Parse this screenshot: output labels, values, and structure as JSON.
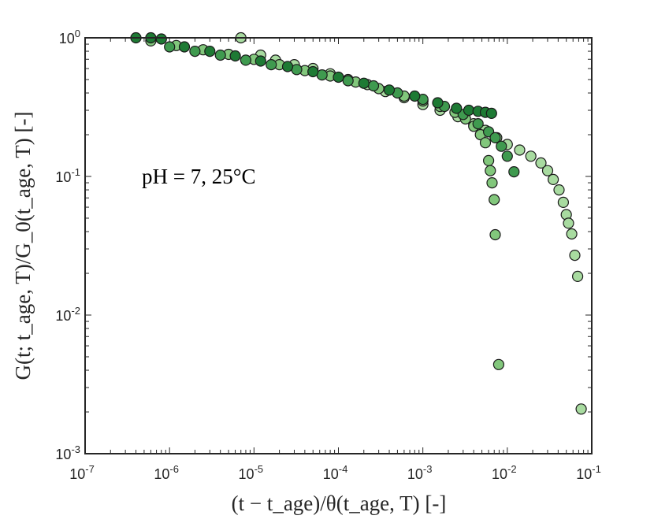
{
  "chart_data": {
    "type": "scatter",
    "xlabel": "(t − t_age)/θ(t_age, T) [-]",
    "ylabel": "G(t; t_age, T)/G_0(t_age, T) [-]",
    "x_scale": "log",
    "y_scale": "log",
    "xlim": [
      1e-07,
      0.1
    ],
    "ylim": [
      0.001,
      1
    ],
    "x_ticks": [
      "10-7",
      "10-6",
      "10-5",
      "10-4",
      "10-3",
      "10-2",
      "10-1"
    ],
    "y_ticks": [
      "10-3",
      "10-2",
      "10-1",
      "100"
    ],
    "annotation": "pH = 7, 25°C",
    "grid": false,
    "legend": "none",
    "series": [
      {
        "color": "#a8dba0",
        "points": [
          [
            7e-06,
            1.0
          ],
          [
            1.2e-05,
            0.75
          ],
          [
            1.8e-05,
            0.69
          ],
          [
            3e-05,
            0.64
          ],
          [
            5e-05,
            0.6
          ],
          [
            8e-05,
            0.55
          ],
          [
            0.00013,
            0.5
          ],
          [
            0.00022,
            0.46
          ],
          [
            0.00036,
            0.41
          ],
          [
            0.0006,
            0.37
          ],
          [
            0.001,
            0.33
          ],
          [
            0.0016,
            0.3
          ],
          [
            0.0026,
            0.27
          ],
          [
            0.004,
            0.24
          ],
          [
            0.0055,
            0.215
          ],
          [
            0.0075,
            0.19
          ],
          [
            0.01,
            0.17
          ],
          [
            0.014,
            0.155
          ],
          [
            0.019,
            0.14
          ],
          [
            0.025,
            0.125
          ],
          [
            0.03,
            0.11
          ],
          [
            0.035,
            0.095
          ],
          [
            0.041,
            0.08
          ],
          [
            0.046,
            0.065
          ],
          [
            0.05,
            0.053
          ],
          [
            0.053,
            0.046
          ],
          [
            0.058,
            0.0385
          ],
          [
            0.063,
            0.027
          ],
          [
            0.068,
            0.019
          ],
          [
            0.075,
            0.0021
          ]
        ]
      },
      {
        "color": "#82c77c",
        "points": [
          [
            6e-07,
            0.95
          ],
          [
            1.2e-06,
            0.88
          ],
          [
            2.5e-06,
            0.82
          ],
          [
            5e-06,
            0.76
          ],
          [
            1e-05,
            0.7
          ],
          [
            2e-05,
            0.64
          ],
          [
            4e-05,
            0.58
          ],
          [
            8e-05,
            0.53
          ],
          [
            0.00016,
            0.48
          ],
          [
            0.0003,
            0.43
          ],
          [
            0.0006,
            0.38
          ],
          [
            0.001,
            0.35
          ],
          [
            0.0016,
            0.32
          ],
          [
            0.0024,
            0.29
          ],
          [
            0.0032,
            0.26
          ],
          [
            0.004,
            0.23
          ],
          [
            0.0048,
            0.2
          ],
          [
            0.0055,
            0.175
          ],
          [
            0.006,
            0.13
          ],
          [
            0.0063,
            0.11
          ],
          [
            0.0066,
            0.09
          ],
          [
            0.007,
            0.068
          ],
          [
            0.0072,
            0.038
          ],
          [
            0.0079,
            0.0044
          ]
        ]
      },
      {
        "color": "#3f9a4f",
        "points": [
          [
            1e-06,
            0.86
          ],
          [
            2e-06,
            0.8
          ],
          [
            4e-06,
            0.75
          ],
          [
            8e-06,
            0.69
          ],
          [
            1.6e-05,
            0.64
          ],
          [
            3.2e-05,
            0.59
          ],
          [
            6.4e-05,
            0.54
          ],
          [
            0.00013,
            0.49
          ],
          [
            0.00026,
            0.45
          ],
          [
            0.0005,
            0.4
          ],
          [
            0.001,
            0.36
          ],
          [
            0.0018,
            0.32
          ],
          [
            0.003,
            0.28
          ],
          [
            0.0045,
            0.24
          ],
          [
            0.006,
            0.21
          ],
          [
            0.0072,
            0.19
          ],
          [
            0.0085,
            0.165
          ],
          [
            0.01,
            0.14
          ],
          [
            0.012,
            0.108
          ]
        ]
      },
      {
        "color": "#1e7a34",
        "points": [
          [
            4e-07,
            1.0
          ],
          [
            6e-07,
            1.0
          ],
          [
            8e-07,
            0.98
          ],
          [
            1.5e-06,
            0.86
          ],
          [
            3e-06,
            0.8
          ],
          [
            6e-06,
            0.74
          ],
          [
            1.2e-05,
            0.68
          ],
          [
            2.5e-05,
            0.62
          ],
          [
            5e-05,
            0.57
          ],
          [
            0.0001,
            0.52
          ],
          [
            0.0002,
            0.47
          ],
          [
            0.0004,
            0.42
          ],
          [
            0.0008,
            0.38
          ],
          [
            0.0015,
            0.34
          ],
          [
            0.0025,
            0.31
          ],
          [
            0.0035,
            0.3
          ],
          [
            0.0045,
            0.295
          ],
          [
            0.0055,
            0.29
          ],
          [
            0.0065,
            0.285
          ]
        ]
      }
    ]
  }
}
